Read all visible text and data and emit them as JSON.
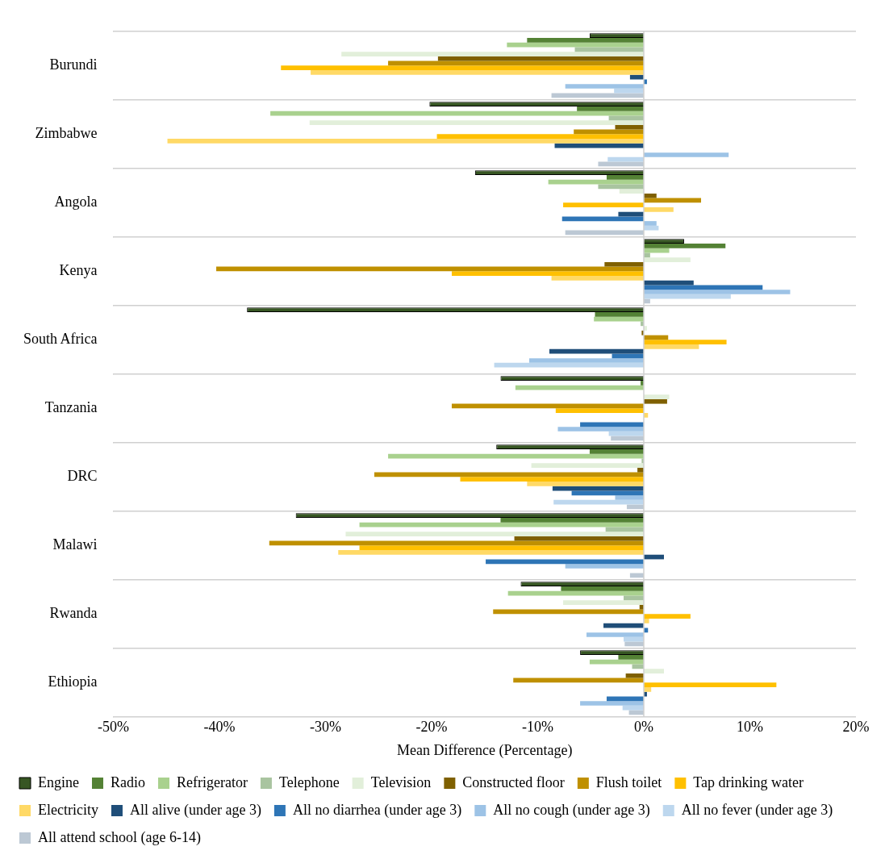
{
  "chart_data": {
    "type": "bar",
    "orientation": "horizontal",
    "xlabel": "Mean Difference (Percentage)",
    "categories": [
      "Burundi",
      "Zimbabwe",
      "Angola",
      "Kenya",
      "South Africa",
      "Tanzania",
      "DRC",
      "Malawi",
      "Rwanda",
      "Ethiopia"
    ],
    "series": [
      {
        "name": "Engine",
        "color": "#375623",
        "values": [
          -5.1,
          -20.2,
          -15.9,
          3.8,
          -37.4,
          -13.5,
          -13.9,
          -32.8,
          -11.6,
          -6.0
        ]
      },
      {
        "name": "Radio",
        "color": "#548235",
        "values": [
          -11.0,
          -6.3,
          -3.5,
          7.7,
          -4.6,
          -0.3,
          -5.1,
          -13.5,
          -7.8,
          -2.4
        ]
      },
      {
        "name": "Refrigerator",
        "color": "#a9d18e",
        "values": [
          -12.9,
          -35.2,
          -9.0,
          2.4,
          -4.7,
          -12.1,
          -24.1,
          -26.8,
          -12.8,
          -5.1
        ]
      },
      {
        "name": "Telephone",
        "color": "#a9c4a0",
        "values": [
          -6.5,
          -3.3,
          -4.3,
          0.6,
          -0.3,
          null,
          -0.2,
          -3.6,
          -1.9,
          -1.1
        ]
      },
      {
        "name": "Television",
        "color": "#e2efda",
        "values": [
          -28.5,
          -31.5,
          -2.3,
          4.4,
          0.3,
          2.4,
          -10.6,
          -28.1,
          -7.6,
          1.9
        ]
      },
      {
        "name": "Constructed floor",
        "color": "#7f6000",
        "values": [
          -19.4,
          -2.7,
          1.2,
          -3.7,
          -0.2,
          2.2,
          -0.6,
          -12.2,
          -0.4,
          -1.7
        ]
      },
      {
        "name": "Flush toilet",
        "color": "#bf9000",
        "values": [
          -24.1,
          -6.6,
          5.4,
          -40.3,
          2.3,
          -18.1,
          -25.4,
          -35.3,
          -14.2,
          -12.3
        ]
      },
      {
        "name": "Tap drinking water",
        "color": "#ffc000",
        "values": [
          -34.2,
          -19.5,
          -7.6,
          -18.1,
          7.8,
          -8.3,
          -17.3,
          -26.8,
          4.4,
          12.5
        ]
      },
      {
        "name": "Electricity",
        "color": "#ffd966",
        "values": [
          -31.4,
          -44.9,
          2.8,
          -8.7,
          5.2,
          0.4,
          -11.0,
          -28.8,
          0.5,
          0.7
        ]
      },
      {
        "name": "All alive (under age 3)",
        "color": "#1f4e79",
        "values": [
          -1.3,
          -8.4,
          -2.4,
          4.7,
          -8.9,
          0.0,
          -8.6,
          1.9,
          -3.8,
          0.3
        ]
      },
      {
        "name": "All no diarrhea (under age 3)",
        "color": "#2e75b6",
        "values": [
          0.3,
          null,
          -7.7,
          11.2,
          -3.0,
          -6.0,
          -6.8,
          -14.9,
          0.4,
          -3.5
        ]
      },
      {
        "name": "All no cough (under age 3)",
        "color": "#9dc3e6",
        "values": [
          -7.4,
          8.0,
          1.2,
          13.8,
          -10.8,
          -8.1,
          -2.7,
          -7.4,
          -5.4,
          -6.0
        ]
      },
      {
        "name": "All no fever (under age 3)",
        "color": "#bdd7ee",
        "values": [
          -2.8,
          -3.4,
          1.4,
          8.2,
          -14.1,
          -3.3,
          -8.5,
          0.0,
          -1.9,
          -2.0
        ]
      },
      {
        "name": "All attend school (age 6-14)",
        "color": "#bcc8d4",
        "values": [
          -8.7,
          -4.3,
          -7.4,
          0.6,
          0.0,
          -3.1,
          -1.6,
          -1.3,
          -1.8,
          -1.4
        ]
      }
    ],
    "xlim": [
      -50,
      20
    ],
    "xticks": [
      {
        "value": -50,
        "label": "-50%"
      },
      {
        "value": -40,
        "label": "-40%"
      },
      {
        "value": -30,
        "label": "-30%"
      },
      {
        "value": -20,
        "label": "-20%"
      },
      {
        "value": -10,
        "label": "-10%"
      },
      {
        "value": 0,
        "label": "0%"
      },
      {
        "value": 10,
        "label": "10%"
      },
      {
        "value": 20,
        "label": "20%"
      }
    ],
    "ref_lines": [
      {
        "axis": "x",
        "value": 0,
        "color": "#d0d0d0"
      }
    ],
    "grid": "y",
    "legend": "bottom"
  }
}
